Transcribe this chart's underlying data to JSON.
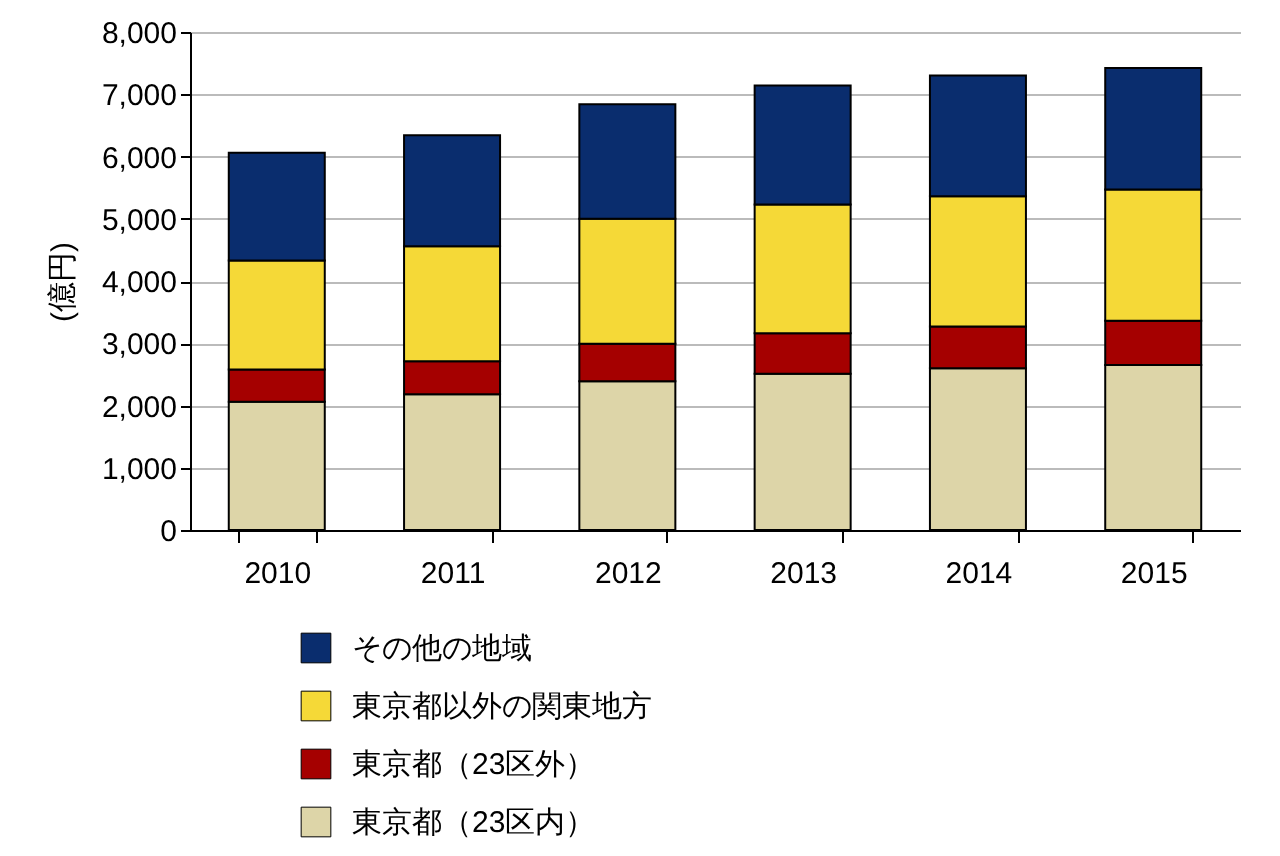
{
  "chart_data": {
    "type": "bar",
    "stacked": true,
    "ylabel": "(億円)",
    "categories": [
      "2010",
      "2011",
      "2012",
      "2013",
      "2014",
      "2015"
    ],
    "series": [
      {
        "name": "東京都（23区内）",
        "color": "#ddd5a8",
        "values": [
          2060,
          2180,
          2390,
          2510,
          2600,
          2650
        ]
      },
      {
        "name": "東京都（23区外）",
        "color": "#a50000",
        "values": [
          520,
          530,
          600,
          650,
          670,
          710
        ]
      },
      {
        "name": "東京都以外の関東地方",
        "color": "#f5d937",
        "values": [
          1750,
          1850,
          2010,
          2070,
          2090,
          2110
        ]
      },
      {
        "name": "その他の地域",
        "color": "#0a2d6e",
        "values": [
          1730,
          1780,
          1840,
          1910,
          1940,
          1950
        ]
      }
    ],
    "ylim": [
      0,
      8000
    ],
    "yticks": [
      0,
      {
        "value": 1000,
        "label": "1,000"
      },
      {
        "value": 2000,
        "label": "2,000"
      },
      {
        "value": 3000,
        "label": "3,000"
      },
      {
        "value": 4000,
        "label": "4,000"
      },
      {
        "value": 5000,
        "label": "5,000"
      },
      {
        "value": 6000,
        "label": "6,000"
      },
      {
        "value": 7000,
        "label": "7,000"
      },
      {
        "value": 8000,
        "label": "8,000"
      }
    ],
    "grid": "y",
    "legend": "bottom"
  }
}
